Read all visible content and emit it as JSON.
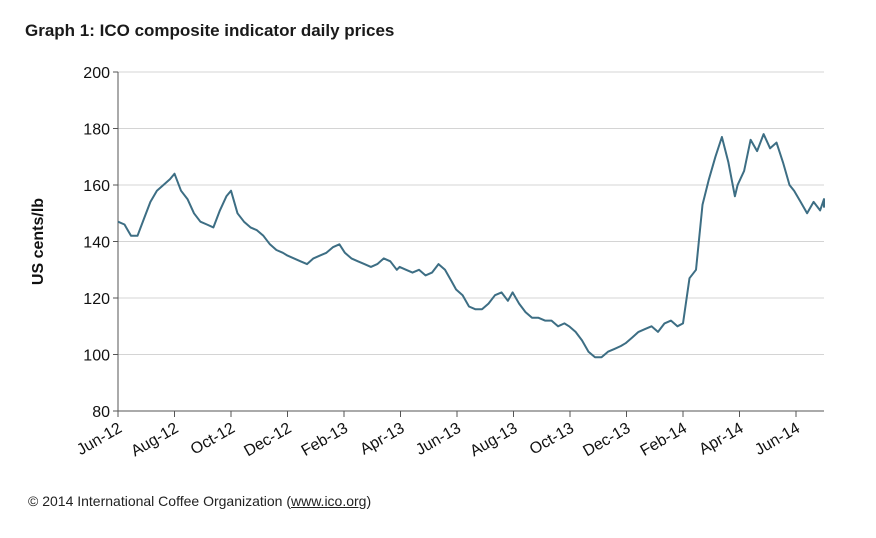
{
  "footer": {
    "copyright": "© 2014 International Coffee Organization (",
    "link": "www.ico.org",
    "close": ")"
  },
  "chart_data": {
    "type": "line",
    "title": "Graph 1: ICO composite indicator daily prices",
    "xlabel": "",
    "ylabel": "US cents/lb",
    "ylim": [
      80,
      200
    ],
    "yticks": [
      80,
      100,
      120,
      140,
      160,
      180,
      200
    ],
    "xticks": [
      "Jun-12",
      "Aug-12",
      "Oct-12",
      "Dec-12",
      "Feb-13",
      "Apr-13",
      "Jun-13",
      "Aug-13",
      "Oct-13",
      "Dec-13",
      "Feb-14",
      "Apr-14",
      "Jun-14"
    ],
    "xlim": [
      "2012-06-01",
      "2014-07-15"
    ],
    "grid": "horizontal",
    "line_color": "#3d6e84",
    "series": [
      {
        "x": [
          "2012-06-01",
          "2012-06-08",
          "2012-06-15",
          "2012-06-22",
          "2012-06-29",
          "2012-07-06",
          "2012-07-13",
          "2012-07-20",
          "2012-07-27",
          "2012-08-01",
          "2012-08-08",
          "2012-08-15",
          "2012-08-22",
          "2012-08-29",
          "2012-09-05",
          "2012-09-12",
          "2012-09-19",
          "2012-09-26",
          "2012-10-01",
          "2012-10-08",
          "2012-10-15",
          "2012-10-22",
          "2012-10-29",
          "2012-11-05",
          "2012-11-12",
          "2012-11-19",
          "2012-11-26",
          "2012-12-01",
          "2012-12-08",
          "2012-12-15",
          "2012-12-22",
          "2012-12-29",
          "2013-01-05",
          "2013-01-12",
          "2013-01-19",
          "2013-01-26",
          "2013-02-01",
          "2013-02-08",
          "2013-02-15",
          "2013-02-22",
          "2013-03-01",
          "2013-03-08",
          "2013-03-15",
          "2013-03-22",
          "2013-03-29",
          "2013-04-01",
          "2013-04-08",
          "2013-04-15",
          "2013-04-22",
          "2013-04-29",
          "2013-05-06",
          "2013-05-13",
          "2013-05-20",
          "2013-05-27",
          "2013-06-01",
          "2013-06-08",
          "2013-06-15",
          "2013-06-22",
          "2013-06-29",
          "2013-07-06",
          "2013-07-13",
          "2013-07-20",
          "2013-07-27",
          "2013-08-01",
          "2013-08-08",
          "2013-08-15",
          "2013-08-22",
          "2013-08-29",
          "2013-09-05",
          "2013-09-12",
          "2013-09-19",
          "2013-09-26",
          "2013-10-01",
          "2013-10-08",
          "2013-10-15",
          "2013-10-22",
          "2013-10-29",
          "2013-11-05",
          "2013-11-12",
          "2013-11-19",
          "2013-11-26",
          "2013-12-01",
          "2013-12-08",
          "2013-12-15",
          "2013-12-22",
          "2013-12-29",
          "2014-01-05",
          "2014-01-12",
          "2014-01-19",
          "2014-01-26",
          "2014-02-01",
          "2014-02-08",
          "2014-02-15",
          "2014-02-22",
          "2014-03-01",
          "2014-03-08",
          "2014-03-15",
          "2014-03-22",
          "2014-03-29",
          "2014-04-01",
          "2014-04-08",
          "2014-04-15",
          "2014-04-22",
          "2014-04-29",
          "2014-05-06",
          "2014-05-13",
          "2014-05-20",
          "2014-05-27",
          "2014-06-01",
          "2014-06-08",
          "2014-06-15",
          "2014-06-22",
          "2014-06-29",
          "2014-07-06",
          "2014-07-13"
        ],
        "values": [
          147,
          146,
          142,
          142,
          148,
          154,
          158,
          160,
          162,
          164,
          158,
          155,
          150,
          147,
          146,
          145,
          151,
          156,
          158,
          150,
          147,
          145,
          144,
          142,
          139,
          137,
          136,
          135,
          134,
          133,
          132,
          134,
          135,
          136,
          138,
          139,
          136,
          134,
          133,
          132,
          131,
          132,
          134,
          133,
          130,
          131,
          130,
          129,
          130,
          128,
          129,
          132,
          130,
          126,
          123,
          121,
          117,
          116,
          116,
          118,
          121,
          122,
          119,
          122,
          118,
          115,
          113,
          113,
          112,
          112,
          110,
          111,
          110,
          108,
          105,
          101,
          99,
          99,
          101,
          102,
          103,
          104,
          106,
          108,
          109,
          110,
          108,
          111,
          112,
          110,
          111,
          127,
          130,
          153,
          162,
          170,
          177,
          168,
          156,
          160,
          165,
          176,
          172,
          178,
          173,
          175,
          168,
          160,
          158,
          154,
          150,
          154,
          151,
          155,
          152
        ]
      }
    ]
  }
}
